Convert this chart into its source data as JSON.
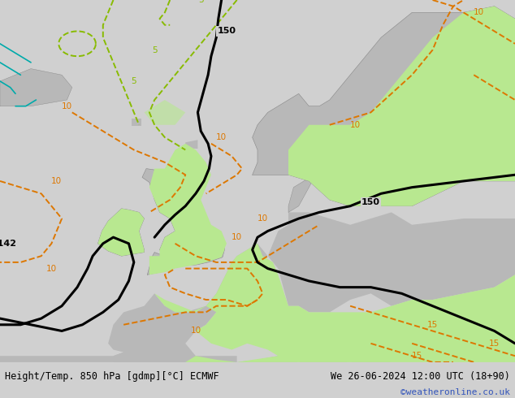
{
  "title_left": "Height/Temp. 850 hPa [gdmp][°C] ECMWF",
  "title_right": "We 26-06-2024 12:00 UTC (18+90)",
  "credit": "©weatheronline.co.uk",
  "ocean_color": "#d0d0d0",
  "land_color": "#b8b8b8",
  "warm_color": "#b8e890",
  "bottom_bar_color": "#e0e0e0",
  "font_color_title": "#000000",
  "font_color_credit": "#3355bb",
  "figsize": [
    6.34,
    4.9
  ],
  "dpi": 100,
  "xlim": [
    -20,
    30
  ],
  "ylim": [
    43,
    72
  ]
}
